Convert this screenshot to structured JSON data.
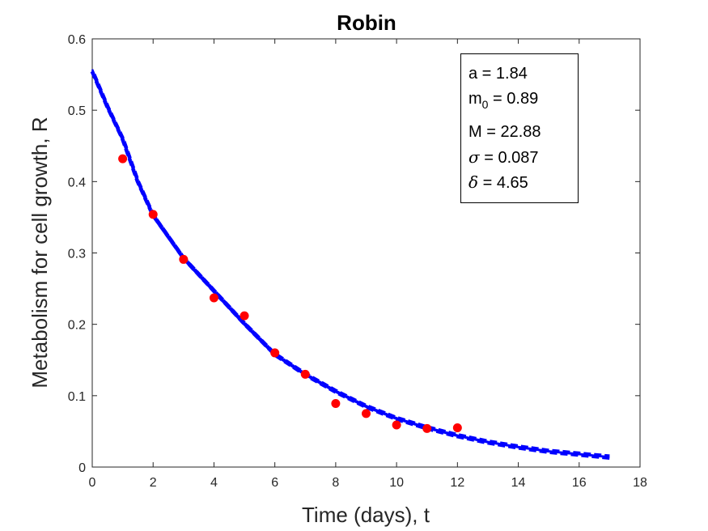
{
  "chart_data": {
    "type": "scatter",
    "title": "Robin",
    "xlabel": "Time (days), t",
    "ylabel": "Metabolism for cell growth, R",
    "xlim": [
      0,
      18
    ],
    "ylim": [
      0,
      0.6
    ],
    "xticks": [
      "0",
      "2",
      "4",
      "6",
      "8",
      "10",
      "12",
      "14",
      "16",
      "18"
    ],
    "yticks": [
      "0",
      "0.1",
      "0.2",
      "0.3",
      "0.4",
      "0.5",
      "0.6"
    ],
    "grid": false,
    "colors": {
      "points": "#ff0000",
      "curve": "#0000ff",
      "axis": "#262626"
    },
    "series": [
      {
        "kind": "points",
        "x": [
          1,
          2,
          3,
          4,
          5,
          6,
          7,
          8,
          9,
          10,
          11,
          12
        ],
        "y": [
          0.432,
          0.354,
          0.291,
          0.237,
          0.212,
          0.16,
          0.13,
          0.089,
          0.075,
          0.059,
          0.054,
          0.055
        ]
      },
      {
        "kind": "dashed-curve",
        "x": [
          0,
          0.5,
          1,
          1.5,
          2,
          3,
          4,
          5,
          6,
          7,
          8,
          9,
          10,
          11,
          12,
          13,
          14,
          15,
          16,
          17
        ],
        "y": [
          0.555,
          0.505,
          0.46,
          0.4,
          0.353,
          0.293,
          0.247,
          0.201,
          0.158,
          0.13,
          0.106,
          0.085,
          0.068,
          0.055,
          0.044,
          0.035,
          0.028,
          0.022,
          0.018,
          0.014
        ]
      }
    ]
  },
  "legend_box": {
    "a_label": "a = 1.84",
    "m0_base": "m",
    "m0_sub": "0",
    "m0_value": " = 0.89",
    "M_label": "M = 22.88",
    "sigma_symbol": "σ",
    "sigma_value": " = 0.087",
    "delta_symbol": "δ",
    "delta_value": " = 4.65"
  }
}
